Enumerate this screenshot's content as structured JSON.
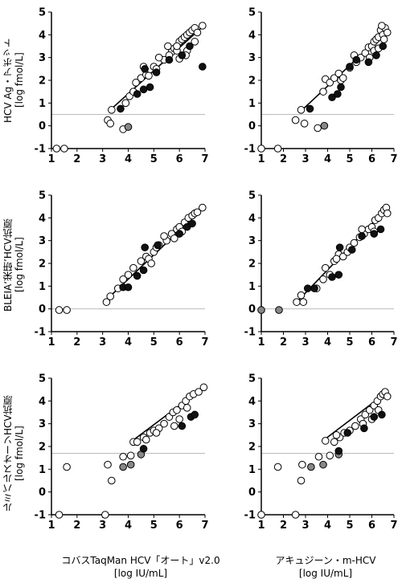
{
  "y_labels": [
    "HCV Ag・アボット\n[log fmol/L]",
    "BLEIA‘栄研’HCV抗原\n[log fmol/L]",
    "ルミパルスオーソHCV抗原\n[log fmol/L]"
  ],
  "x_labels": [
    "コバスTaqMan HCV「オート」v2.0\n[log IU/mL]",
    "アキュジーン・m-HCV\n[log IU/mL]"
  ],
  "colors": {
    "open": "#ffffff",
    "closed": "#111111",
    "gray": "#888888",
    "line": "#000000",
    "cutoff": "#bbbbbb"
  },
  "chart_data": [
    {
      "type": "scatter",
      "row": 0,
      "col": 0,
      "xlim": [
        1,
        7
      ],
      "ylim": [
        -1,
        5
      ],
      "xticks": [
        1,
        2,
        3,
        4,
        5,
        6,
        7
      ],
      "yticks": [
        -1,
        0,
        1,
        2,
        3,
        4,
        5
      ],
      "cutoff": 0.5,
      "fit": [
        [
          3.3,
          0.7
        ],
        [
          6.95,
          4.4
        ]
      ],
      "open": [
        [
          1.2,
          -1
        ],
        [
          1.5,
          -1
        ],
        [
          3.2,
          0.25
        ],
        [
          3.3,
          0.1
        ],
        [
          3.35,
          0.7
        ],
        [
          3.8,
          -0.15
        ],
        [
          3.9,
          1.0
        ],
        [
          4.05,
          1.3
        ],
        [
          4.2,
          1.5
        ],
        [
          4.3,
          1.9
        ],
        [
          4.5,
          2.1
        ],
        [
          4.7,
          2.25
        ],
        [
          4.8,
          2.2
        ],
        [
          5.0,
          2.6
        ],
        [
          5.4,
          2.9
        ],
        [
          5.55,
          3.5
        ],
        [
          5.7,
          3.25
        ],
        [
          5.8,
          3.4
        ],
        [
          5.9,
          3.3
        ],
        [
          6.0,
          3.7
        ],
        [
          6.1,
          3.8
        ],
        [
          6.2,
          3.9
        ],
        [
          6.3,
          4.0
        ],
        [
          6.4,
          4.1
        ],
        [
          6.5,
          4.2
        ],
        [
          6.6,
          4.3
        ],
        [
          6.7,
          4.1
        ],
        [
          6.9,
          4.4
        ],
        [
          5.2,
          3.0
        ],
        [
          5.6,
          3.1
        ],
        [
          5.9,
          3.5
        ],
        [
          6.3,
          3.3
        ],
        [
          6.6,
          3.7
        ],
        [
          6.0,
          2.95
        ],
        [
          6.25,
          3.1
        ],
        [
          4.6,
          2.6
        ],
        [
          5.1,
          2.5
        ]
      ],
      "closed": [
        [
          3.7,
          0.75
        ],
        [
          4.35,
          1.4
        ],
        [
          4.6,
          1.6
        ],
        [
          4.65,
          2.5
        ],
        [
          4.85,
          1.7
        ],
        [
          5.1,
          2.35
        ],
        [
          5.6,
          2.9
        ],
        [
          6.1,
          3.1
        ],
        [
          6.4,
          3.5
        ],
        [
          6.9,
          2.6
        ]
      ],
      "gray": [
        [
          4.0,
          -0.05
        ]
      ]
    },
    {
      "type": "scatter",
      "row": 0,
      "col": 1,
      "xlim": [
        1,
        7
      ],
      "ylim": [
        -1,
        5
      ],
      "xticks": [
        1,
        2,
        3,
        4,
        5,
        6,
        7
      ],
      "yticks": [
        -1,
        0,
        1,
        2,
        3,
        4,
        5
      ],
      "cutoff": 0.5,
      "fit": [
        [
          2.85,
          0.7
        ],
        [
          6.7,
          4.2
        ]
      ],
      "open": [
        [
          1,
          -1
        ],
        [
          1.75,
          -1
        ],
        [
          2.55,
          0.25
        ],
        [
          2.8,
          0.7
        ],
        [
          2.95,
          0.1
        ],
        [
          3.55,
          -0.1
        ],
        [
          3.8,
          1.5
        ],
        [
          3.9,
          2.05
        ],
        [
          4.1,
          1.9
        ],
        [
          4.3,
          2.1
        ],
        [
          4.5,
          2.3
        ],
        [
          4.6,
          2.0
        ],
        [
          4.7,
          2.1
        ],
        [
          5.0,
          2.55
        ],
        [
          5.2,
          3.1
        ],
        [
          5.5,
          3.0
        ],
        [
          5.7,
          3.2
        ],
        [
          5.85,
          3.45
        ],
        [
          6.0,
          3.5
        ],
        [
          6.1,
          3.7
        ],
        [
          6.2,
          3.8
        ],
        [
          6.3,
          3.9
        ],
        [
          6.4,
          4.2
        ],
        [
          6.5,
          4.0
        ],
        [
          6.6,
          4.3
        ],
        [
          6.45,
          4.4
        ],
        [
          6.55,
          3.8
        ],
        [
          6.7,
          4.1
        ],
        [
          6.1,
          3.3
        ],
        [
          5.9,
          3.0
        ],
        [
          6.3,
          3.4
        ],
        [
          5.3,
          2.8
        ]
      ],
      "closed": [
        [
          3.2,
          0.75
        ],
        [
          4.2,
          1.25
        ],
        [
          4.45,
          1.4
        ],
        [
          4.6,
          1.7
        ],
        [
          5.0,
          2.6
        ],
        [
          5.3,
          2.9
        ],
        [
          5.85,
          2.8
        ],
        [
          6.2,
          3.1
        ],
        [
          6.5,
          3.5
        ]
      ],
      "gray": [
        [
          3.85,
          0.0
        ]
      ]
    },
    {
      "type": "scatter",
      "row": 1,
      "col": 0,
      "xlim": [
        1,
        7
      ],
      "ylim": [
        -1,
        5
      ],
      "xticks": [
        1,
        2,
        3,
        4,
        5,
        6,
        7
      ],
      "yticks": [
        -1,
        0,
        1,
        2,
        3,
        4,
        5
      ],
      "cutoff": 0,
      "fit": [
        [
          3.1,
          0.35
        ],
        [
          6.95,
          4.45
        ]
      ],
      "open": [
        [
          1.3,
          -0.05
        ],
        [
          1.6,
          -0.05
        ],
        [
          3.15,
          0.3
        ],
        [
          3.3,
          0.55
        ],
        [
          3.6,
          0.9
        ],
        [
          3.8,
          1.3
        ],
        [
          4.0,
          1.5
        ],
        [
          4.2,
          1.8
        ],
        [
          4.5,
          2.1
        ],
        [
          4.7,
          2.3
        ],
        [
          4.8,
          2.2
        ],
        [
          5.0,
          2.5
        ],
        [
          5.2,
          2.8
        ],
        [
          5.5,
          3.0
        ],
        [
          5.7,
          3.3
        ],
        [
          5.9,
          3.5
        ],
        [
          6.0,
          3.6
        ],
        [
          6.2,
          3.8
        ],
        [
          6.35,
          4.0
        ],
        [
          6.5,
          4.1
        ],
        [
          6.6,
          4.2
        ],
        [
          6.7,
          4.25
        ],
        [
          6.9,
          4.45
        ],
        [
          5.4,
          3.2
        ],
        [
          5.8,
          3.1
        ],
        [
          6.1,
          3.4
        ],
        [
          4.9,
          2.0
        ],
        [
          5.1,
          2.7
        ]
      ],
      "closed": [
        [
          3.8,
          0.95
        ],
        [
          4.0,
          0.95
        ],
        [
          4.35,
          1.45
        ],
        [
          4.6,
          1.7
        ],
        [
          4.65,
          2.7
        ],
        [
          5.15,
          2.8
        ],
        [
          6.0,
          3.3
        ],
        [
          6.3,
          3.6
        ],
        [
          6.5,
          3.75
        ]
      ],
      "gray": []
    },
    {
      "type": "scatter",
      "row": 1,
      "col": 1,
      "xlim": [
        1,
        7
      ],
      "ylim": [
        -1,
        5
      ],
      "xticks": [
        1,
        2,
        3,
        4,
        5,
        6,
        7
      ],
      "yticks": [
        -1,
        0,
        1,
        2,
        3,
        4,
        5
      ],
      "cutoff": 0,
      "fit": [
        [
          2.7,
          0.4
        ],
        [
          6.7,
          4.45
        ]
      ],
      "open": [
        [
          2.6,
          0.3
        ],
        [
          2.8,
          0.6
        ],
        [
          2.9,
          0.3
        ],
        [
          3.5,
          0.9
        ],
        [
          3.8,
          1.3
        ],
        [
          3.9,
          1.8
        ],
        [
          4.1,
          1.5
        ],
        [
          4.3,
          2.1
        ],
        [
          4.5,
          2.4
        ],
        [
          4.7,
          2.3
        ],
        [
          4.9,
          2.5
        ],
        [
          5.0,
          2.7
        ],
        [
          5.2,
          2.9
        ],
        [
          5.45,
          3.15
        ],
        [
          5.65,
          3.3
        ],
        [
          5.85,
          3.5
        ],
        [
          6.0,
          3.6
        ],
        [
          6.15,
          3.9
        ],
        [
          6.3,
          4.0
        ],
        [
          6.45,
          4.2
        ],
        [
          6.55,
          4.35
        ],
        [
          6.65,
          4.45
        ],
        [
          6.7,
          4.2
        ],
        [
          5.55,
          3.5
        ],
        [
          6.1,
          3.4
        ],
        [
          4.4,
          2.2
        ]
      ],
      "closed": [
        [
          3.1,
          0.9
        ],
        [
          3.4,
          0.9
        ],
        [
          4.2,
          1.4
        ],
        [
          4.5,
          1.5
        ],
        [
          4.55,
          2.7
        ],
        [
          5.1,
          2.6
        ],
        [
          5.55,
          3.2
        ],
        [
          6.1,
          3.3
        ],
        [
          6.4,
          3.5
        ]
      ],
      "gray": [
        [
          1,
          -0.05
        ],
        [
          1.8,
          -0.05
        ]
      ]
    },
    {
      "type": "scatter",
      "row": 2,
      "col": 0,
      "xlim": [
        1,
        7
      ],
      "ylim": [
        -1,
        5
      ],
      "xticks": [
        1,
        2,
        3,
        4,
        5,
        6,
        7
      ],
      "yticks": [
        -1,
        0,
        1,
        2,
        3,
        4,
        5
      ],
      "cutoff": 1.7,
      "fit": [
        [
          4.1,
          2.2
        ],
        [
          6.95,
          4.6
        ]
      ],
      "open": [
        [
          1.3,
          -1
        ],
        [
          1.6,
          1.1
        ],
        [
          3.1,
          -1
        ],
        [
          3.2,
          1.2
        ],
        [
          3.35,
          0.5
        ],
        [
          3.8,
          1.55
        ],
        [
          4.1,
          1.6
        ],
        [
          4.2,
          2.2
        ],
        [
          4.35,
          2.2
        ],
        [
          4.6,
          2.4
        ],
        [
          4.85,
          2.6
        ],
        [
          5.0,
          2.7
        ],
        [
          5.2,
          2.8
        ],
        [
          5.4,
          3.0
        ],
        [
          5.6,
          3.3
        ],
        [
          5.75,
          3.5
        ],
        [
          5.9,
          3.6
        ],
        [
          6.1,
          3.8
        ],
        [
          6.25,
          4.0
        ],
        [
          6.4,
          4.2
        ],
        [
          6.55,
          4.3
        ],
        [
          6.75,
          4.4
        ],
        [
          6.95,
          4.6
        ],
        [
          5.8,
          2.9
        ],
        [
          6.0,
          3.2
        ],
        [
          6.3,
          3.7
        ],
        [
          4.7,
          2.3
        ],
        [
          5.1,
          2.6
        ]
      ],
      "closed": [
        [
          4.6,
          1.9
        ],
        [
          6.1,
          2.9
        ],
        [
          6.45,
          3.3
        ],
        [
          6.6,
          3.4
        ]
      ],
      "gray": [
        [
          3.8,
          1.1
        ],
        [
          4.1,
          1.2
        ],
        [
          4.5,
          1.65
        ]
      ]
    },
    {
      "type": "scatter",
      "row": 2,
      "col": 1,
      "xlim": [
        1,
        7
      ],
      "ylim": [
        -1,
        5
      ],
      "xticks": [
        1,
        2,
        3,
        4,
        5,
        6,
        7
      ],
      "yticks": [
        -1,
        0,
        1,
        2,
        3,
        4,
        5
      ],
      "cutoff": 1.7,
      "fit": [
        [
          3.85,
          2.3
        ],
        [
          6.7,
          4.4
        ]
      ],
      "open": [
        [
          1,
          -1
        ],
        [
          1.75,
          1.1
        ],
        [
          2.55,
          -1
        ],
        [
          2.8,
          0.5
        ],
        [
          2.85,
          1.2
        ],
        [
          3.6,
          1.55
        ],
        [
          3.9,
          2.25
        ],
        [
          4.1,
          1.6
        ],
        [
          4.3,
          2.2
        ],
        [
          4.55,
          2.4
        ],
        [
          4.75,
          2.6
        ],
        [
          5.0,
          2.7
        ],
        [
          5.25,
          2.9
        ],
        [
          5.5,
          3.2
        ],
        [
          5.7,
          3.4
        ],
        [
          5.9,
          3.6
        ],
        [
          6.1,
          3.8
        ],
        [
          6.25,
          4.0
        ],
        [
          6.4,
          4.2
        ],
        [
          6.5,
          4.3
        ],
        [
          6.6,
          4.4
        ],
        [
          6.7,
          4.2
        ],
        [
          5.6,
          3.0
        ],
        [
          6.0,
          3.2
        ],
        [
          6.3,
          3.6
        ],
        [
          4.4,
          2.5
        ]
      ],
      "closed": [
        [
          4.5,
          1.8
        ],
        [
          4.9,
          2.6
        ],
        [
          5.65,
          2.8
        ],
        [
          6.1,
          3.3
        ],
        [
          6.45,
          3.4
        ]
      ],
      "gray": [
        [
          3.25,
          1.1
        ],
        [
          3.8,
          1.2
        ],
        [
          4.5,
          1.65
        ]
      ]
    }
  ]
}
